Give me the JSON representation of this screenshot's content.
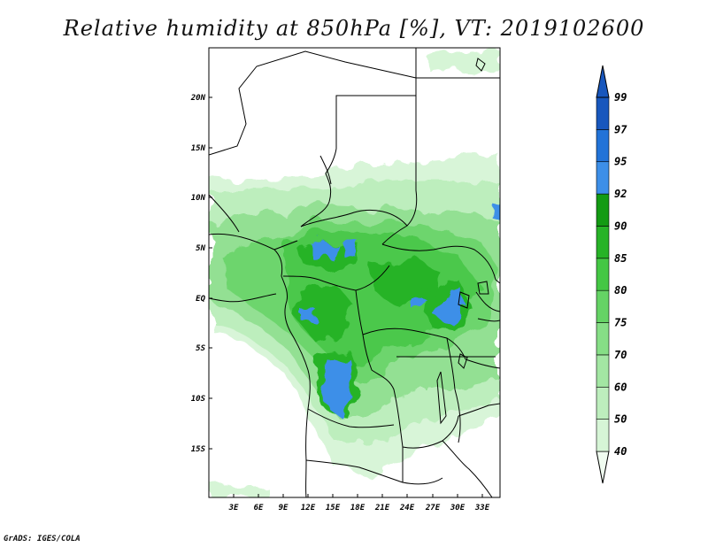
{
  "title": "Relative humidity at 850hPa [%], VT: 2019102600",
  "credit": "GrADS: IGES/COLA",
  "map": {
    "lat_labels": [
      "20N",
      "15N",
      "10N",
      "5N",
      "EQ",
      "5S",
      "10S",
      "15S"
    ],
    "lon_labels": [
      "3E",
      "6E",
      "9E",
      "12E",
      "15E",
      "18E",
      "21E",
      "24E",
      "27E",
      "30E",
      "33E"
    ]
  },
  "colorbar": {
    "levels": [
      "40",
      "50",
      "60",
      "70",
      "75",
      "80",
      "85",
      "90",
      "92",
      "95",
      "97",
      "99"
    ],
    "colors": [
      "#f0fcf0",
      "#d6f5d6",
      "#bdeebd",
      "#a3e6a3",
      "#86de86",
      "#65d365",
      "#44c744",
      "#27b327",
      "#139b13",
      "#3d8fe8",
      "#2273d8",
      "#1857bd"
    ]
  }
}
